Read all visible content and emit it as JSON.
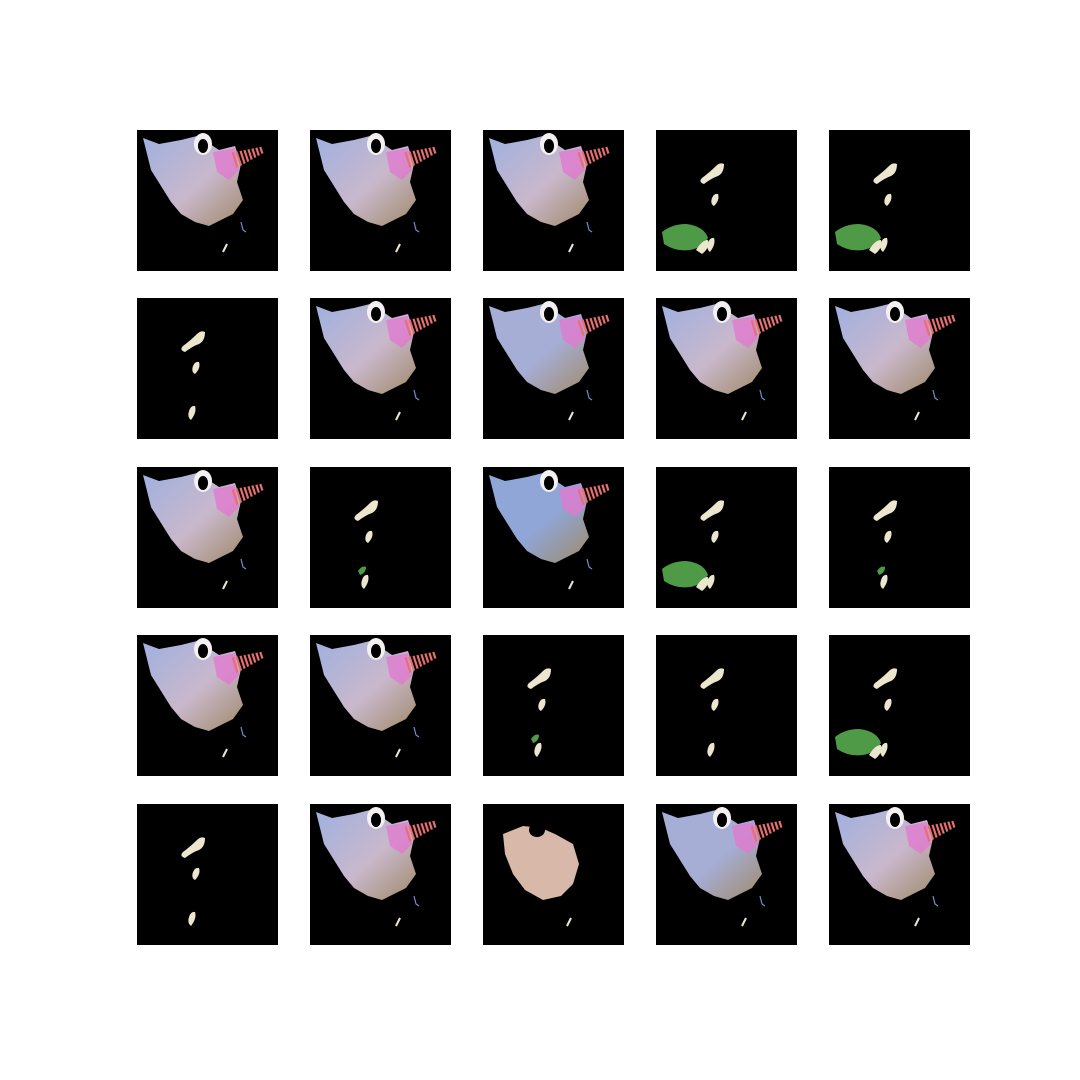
{
  "grid": {
    "rows": 5,
    "cols": 5,
    "background": "#ffffff",
    "tile_background": "#000000",
    "tiles": [
      "full-pastel",
      "full-pastel",
      "full-pastel",
      "strips-green-left",
      "strips-green-left",
      "strips",
      "full-pastel",
      "full-blue",
      "full-pastel",
      "full-pastel",
      "full-pastel",
      "strips-green-small",
      "full-blue-large",
      "strips-green-left",
      "strips-green-small",
      "full-pastel",
      "full-pastel",
      "strips-green-small",
      "strips",
      "strips-green-left",
      "strips",
      "full-pastel",
      "compact-peach",
      "full-blue",
      "full-pastel"
    ]
  },
  "colors": {
    "body_lavender": "#c9b8cc",
    "body_blue": "#8fa6d6",
    "highlight_pink": "#e07ad0",
    "stripe_coral": "#e86f6f",
    "cream_strip": "#ece6cf",
    "leaf_green": "#4f9a46",
    "peach": "#d8b8a8"
  }
}
